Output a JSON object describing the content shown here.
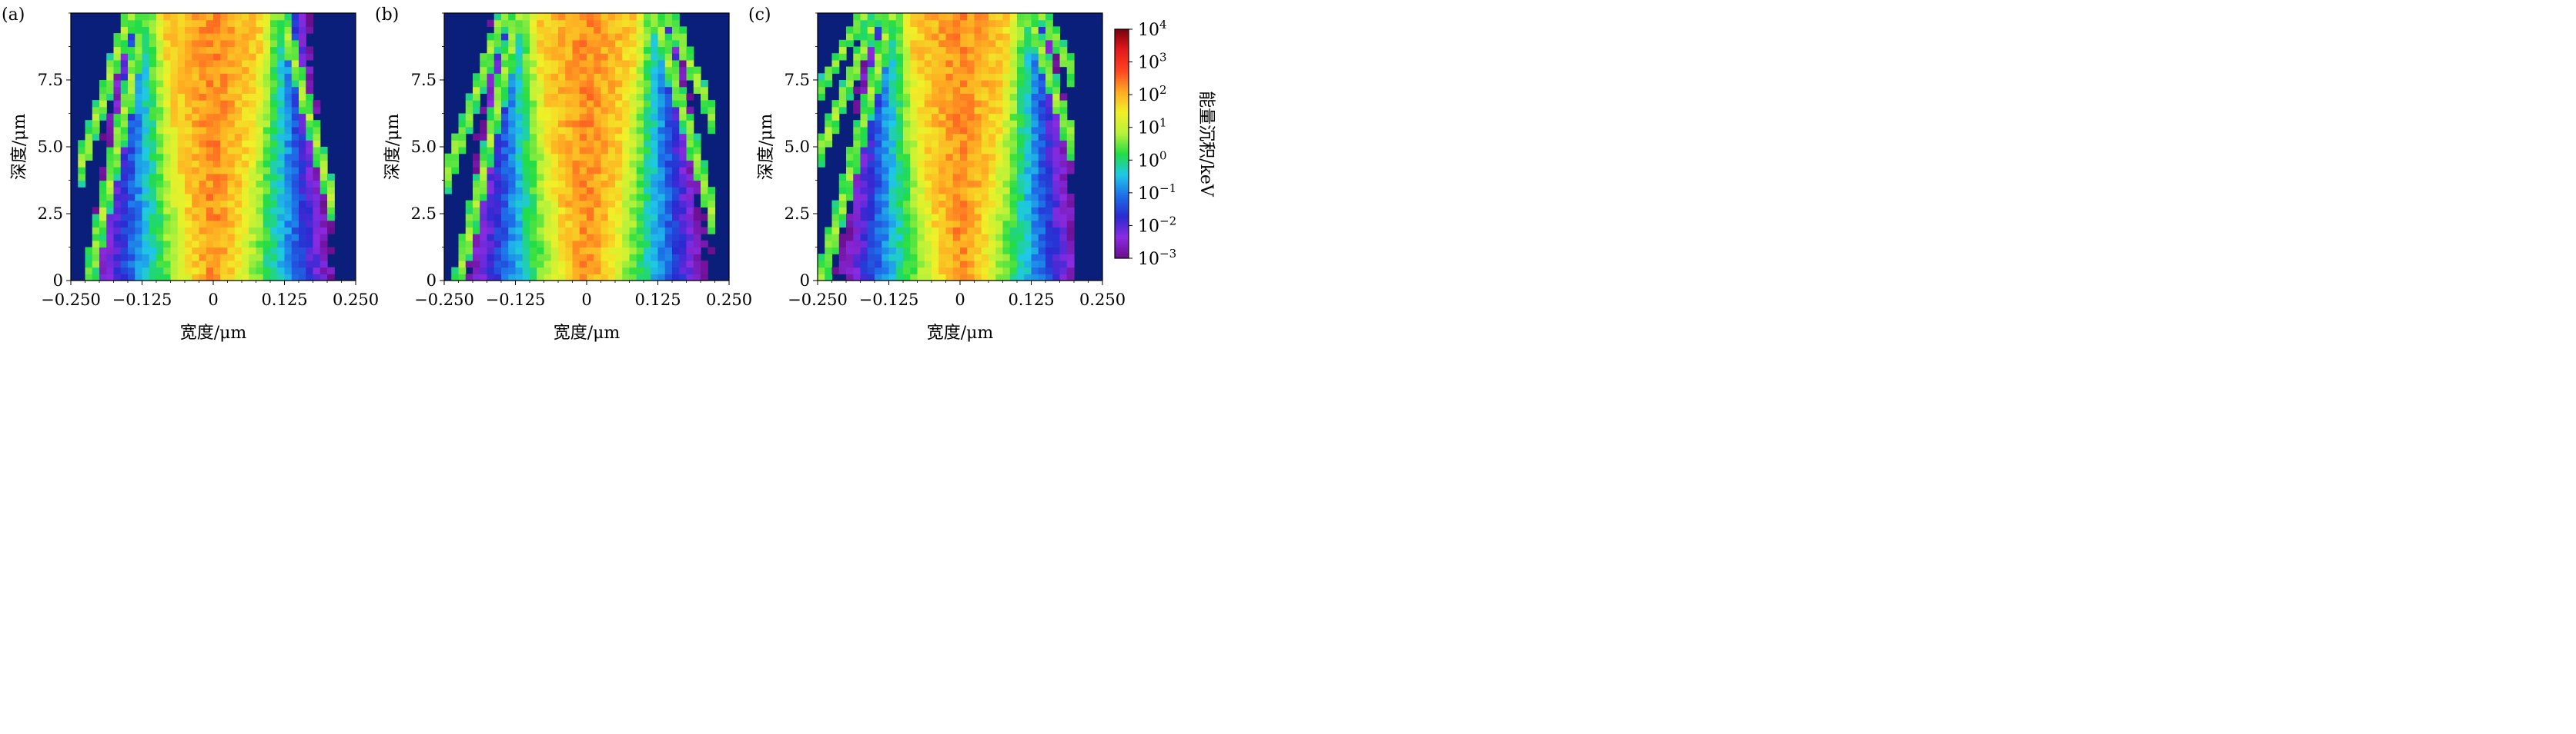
{
  "chart_data": [
    {
      "type": "heatmap",
      "panel_label": "(a)",
      "xlabel": "宽度/μm",
      "ylabel": "深度/μm",
      "xlim": [
        -0.25,
        0.25
      ],
      "ylim": [
        0,
        10
      ],
      "x_ticks": [
        -0.25,
        -0.125,
        0,
        0.125,
        0.25
      ],
      "x_tick_labels": [
        "−0.250",
        "−0.125",
        "0",
        "0.125",
        "0.250"
      ],
      "y_ticks": [
        0,
        2.5,
        5.0,
        7.5
      ],
      "y_tick_labels": [
        "0",
        "2.5",
        "5.0",
        "7.5"
      ],
      "core_halfwidth_at_top": 0.09,
      "core_halfwidth_at_bottom": 0.03,
      "scatter_extent_left": -0.24,
      "scatter_extent_right": 0.21,
      "streak_count": 3,
      "streak_slope": 0.028
    },
    {
      "type": "heatmap",
      "panel_label": "(b)",
      "xlabel": "宽度/μm",
      "ylabel": "深度/μm",
      "xlim": [
        -0.25,
        0.25
      ],
      "ylim": [
        0,
        10
      ],
      "x_ticks": [
        -0.25,
        -0.125,
        0,
        0.125,
        0.25
      ],
      "x_tick_labels": [
        "−0.250",
        "−0.125",
        "0",
        "0.125",
        "0.250"
      ],
      "y_ticks": [
        0,
        2.5,
        5.0,
        7.5
      ],
      "y_tick_labels": [
        "0",
        "2.5",
        "5.0",
        "7.5"
      ],
      "core_halfwidth_at_top": 0.09,
      "core_halfwidth_at_bottom": 0.03,
      "scatter_extent_left": -0.25,
      "scatter_extent_right": 0.22,
      "streak_count": 4,
      "streak_slope": 0.03
    },
    {
      "type": "heatmap",
      "panel_label": "(c)",
      "xlabel": "宽度/μm",
      "ylabel": "深度/μm",
      "xlim": [
        -0.25,
        0.25
      ],
      "ylim": [
        0,
        10
      ],
      "x_ticks": [
        -0.25,
        -0.125,
        0,
        0.125,
        0.25
      ],
      "x_tick_labels": [
        "−0.250",
        "−0.125",
        "0",
        "0.125",
        "0.250"
      ],
      "y_ticks": [
        0,
        2.5,
        5.0,
        7.5
      ],
      "y_tick_labels": [
        "0",
        "2.5",
        "5.0",
        "7.5"
      ],
      "core_halfwidth_at_top": 0.09,
      "core_halfwidth_at_bottom": 0.03,
      "scatter_extent_left": -0.25,
      "scatter_extent_right": 0.2,
      "streak_count": 5,
      "streak_slope": 0.035
    }
  ],
  "colorbar": {
    "label": "能量沉积/keV",
    "scale": "log",
    "range": [
      0.001,
      10000
    ],
    "tick_base": "10",
    "tick_exponents": [
      "4",
      "3",
      "2",
      "1",
      "0",
      "−1",
      "−2",
      "−3"
    ],
    "colormap": [
      "#6a0d8a",
      "#8a2be2",
      "#2a2ad0",
      "#1e6ee8",
      "#1fc8e8",
      "#22dd44",
      "#b8f23a",
      "#f0f028",
      "#ffaa22",
      "#ff4422",
      "#e41a1a",
      "#7a0010"
    ],
    "background_color": "#0a1f7a"
  }
}
